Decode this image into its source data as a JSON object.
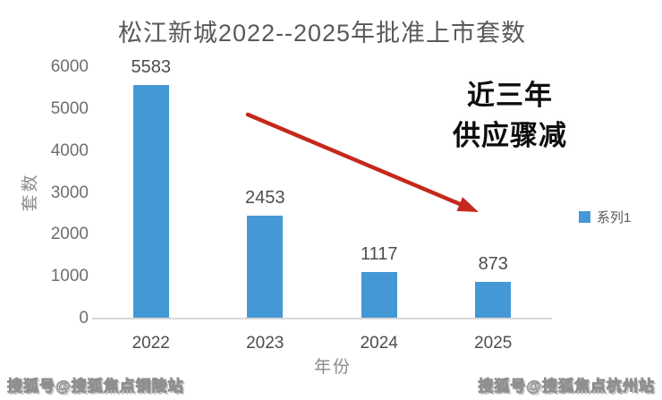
{
  "chart_data": {
    "type": "bar",
    "title": "松江新城2022--2025年批准上市套数",
    "categories": [
      "2022",
      "2023",
      "2024",
      "2025"
    ],
    "values": [
      5583,
      2453,
      1117,
      873
    ],
    "xlabel": "年份",
    "ylabel": "套数",
    "ylim": [
      0,
      6000
    ],
    "yticks": [
      0,
      1000,
      2000,
      3000,
      4000,
      5000,
      6000
    ],
    "grid": false,
    "legend_position": "right",
    "series_name": "系列1",
    "bar_color": "#4598d6"
  },
  "legend": {
    "label": "系列1"
  },
  "annotation": {
    "line1": "近三年",
    "line2": "供应骤减",
    "arrow_color": "#c5281c"
  },
  "watermarks": {
    "left": "搜狐号@搜狐焦点铜陵站",
    "right": "搜狐号@搜狐焦点杭州站"
  },
  "colors": {
    "bar": "#4598d6",
    "arrow": "#c5281c",
    "axis_line": "#d8d8d8",
    "title_text": "#595959",
    "tick_text": "#4d4d4d"
  }
}
